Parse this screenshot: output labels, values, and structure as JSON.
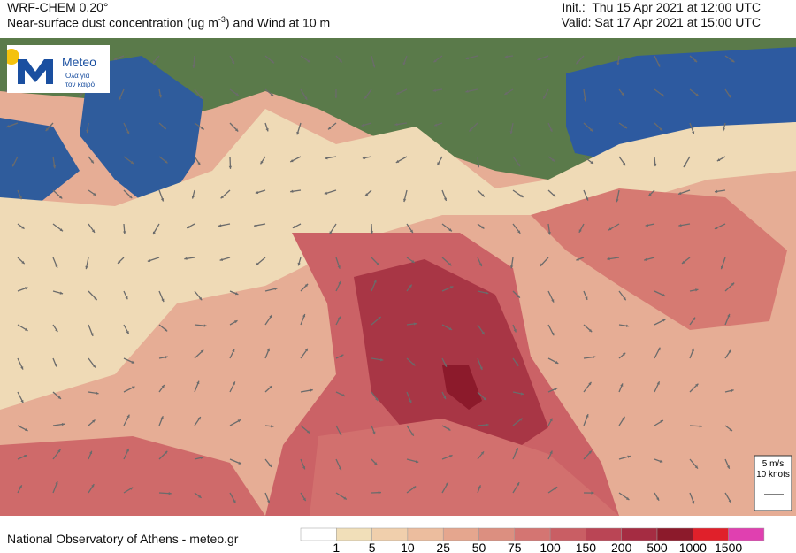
{
  "header": {
    "model": "WRF-CHEM 0.20°",
    "title_pre": "Near-surface dust concentration (ug m",
    "title_sup": "-3",
    "title_post": ") and Wind at 10 m",
    "init": "Init.:  Thu 15 Apr 2021 at 12:00 UTC",
    "valid": "Valid: Sat 17 Apr 2021 at 15:00 UTC"
  },
  "logo": {
    "name": "Meteo",
    "line1": "Όλα για",
    "line2": "τον καιρό"
  },
  "wind_legend": {
    "speed": "5 m/s",
    "knots": "10 knots"
  },
  "footer": {
    "credit": "National Observatory of Athens - meteo.gr"
  },
  "colorbar": {
    "ticks": [
      1,
      5,
      10,
      25,
      50,
      75,
      100,
      150,
      200,
      500,
      1000,
      1500
    ],
    "colors": [
      "#ffffff",
      "#f1dfb9",
      "#f0cfac",
      "#ecbd9e",
      "#e5a68e",
      "#dc8f80",
      "#d47572",
      "#c95e64",
      "#ba4555",
      "#a52c42",
      "#8c1a2b",
      "#e0202a",
      "#e040b0"
    ]
  }
}
